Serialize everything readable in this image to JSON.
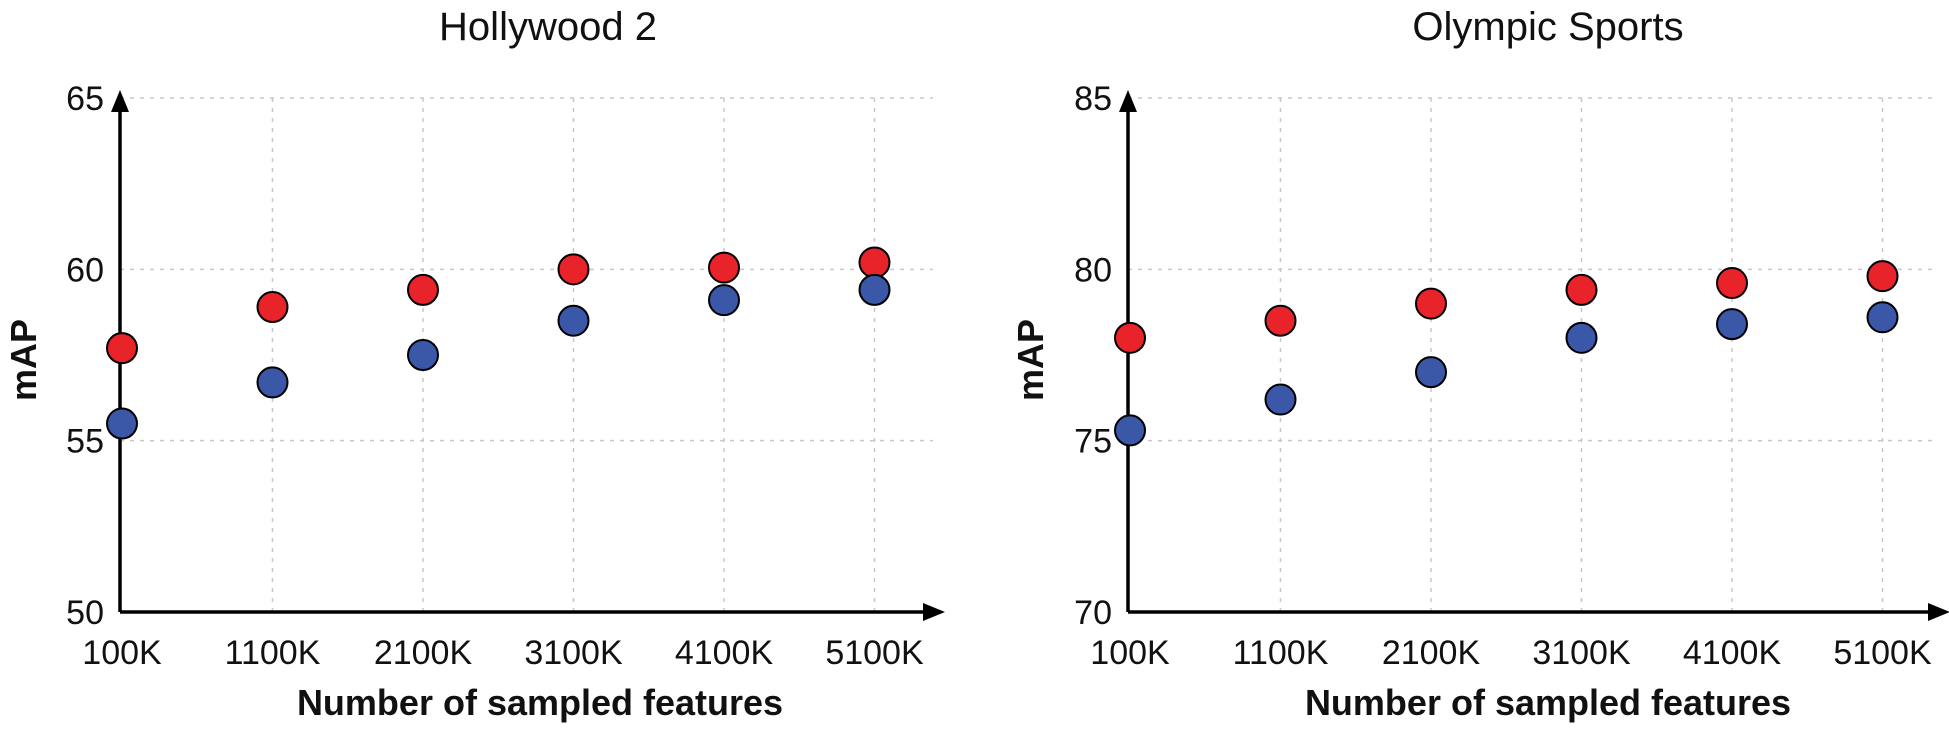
{
  "chart_data": [
    {
      "type": "scatter",
      "title": "Hollywood 2",
      "xlabel": "Number of sampled features",
      "ylabel": "mAP",
      "categories": [
        "100K",
        "1100K",
        "2100K",
        "3100K",
        "4100K",
        "5100K"
      ],
      "ylim": [
        50,
        65
      ],
      "yticks": [
        50,
        55,
        60,
        65
      ],
      "grid": true,
      "series": [
        {
          "color": "#e8232a",
          "values": [
            57.7,
            58.9,
            59.4,
            60.0,
            60.05,
            60.2
          ]
        },
        {
          "color": "#3a57a8",
          "values": [
            55.5,
            56.7,
            57.5,
            58.5,
            59.1,
            59.4
          ]
        }
      ]
    },
    {
      "type": "scatter",
      "title": "Olympic Sports",
      "xlabel": "Number of sampled features",
      "ylabel": "mAP",
      "categories": [
        "100K",
        "1100K",
        "2100K",
        "3100K",
        "4100K",
        "5100K"
      ],
      "ylim": [
        70,
        85
      ],
      "yticks": [
        70,
        75,
        80,
        85
      ],
      "grid": true,
      "series": [
        {
          "color": "#e8232a",
          "values": [
            78.0,
            78.5,
            79.0,
            79.4,
            79.6,
            79.8
          ]
        },
        {
          "color": "#3a57a8",
          "values": [
            75.3,
            76.2,
            77.0,
            78.0,
            78.4,
            78.6
          ]
        }
      ]
    }
  ]
}
